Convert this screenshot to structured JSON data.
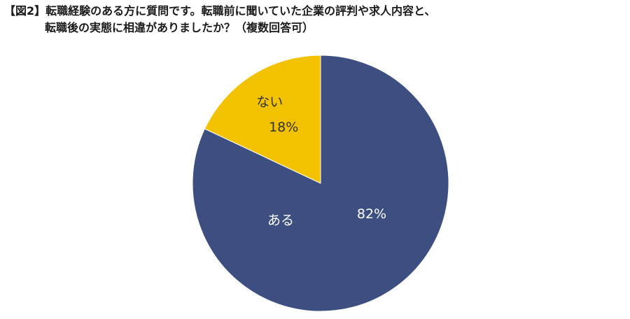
{
  "header": {
    "title_line1": "【図2】転職経験のある方に質問です。転職前に聞いていた企業の評判や求人内容と、",
    "title_line2": "転職後の実態に相違がありましたか？（複数回答可）"
  },
  "chart_data": {
    "type": "pie",
    "title": "【図2】転職経験のある方に質問です。転職前に聞いていた企業の評判や求人内容と、転職後の実態に相違がありましたか？（複数回答可）",
    "start_angle_deg": 0,
    "direction": "clockwise",
    "legend": "none",
    "slices": [
      {
        "label": "ある",
        "value": 82,
        "value_label": "82%",
        "color": "#3d4f80",
        "label_color": "#ffffff"
      },
      {
        "label": "ない",
        "value": 18,
        "value_label": "18%",
        "color": "#f2c200",
        "label_color": "#333333"
      }
    ]
  }
}
